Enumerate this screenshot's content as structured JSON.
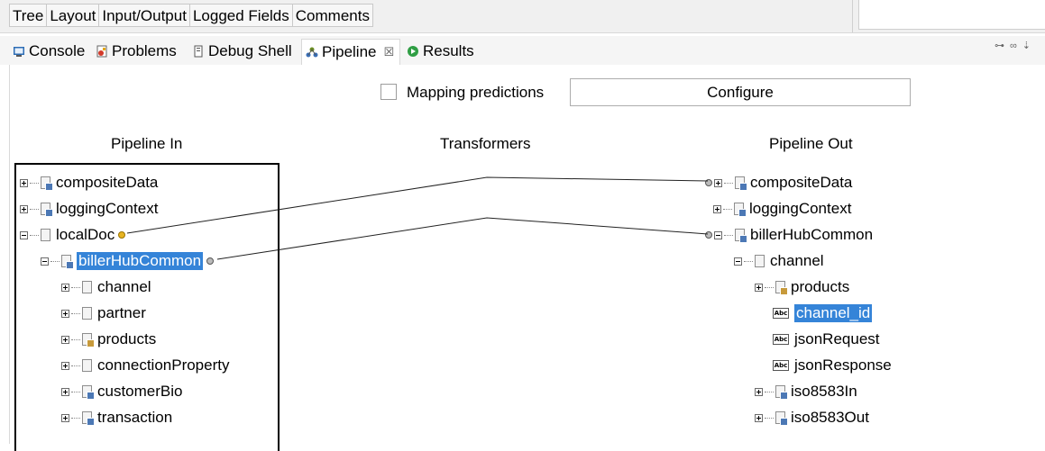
{
  "top_tabs": [
    "Tree",
    "Layout",
    "Input/Output",
    "Logged Fields",
    "Comments"
  ],
  "view_tabs": {
    "console": "Console",
    "problems": "Problems",
    "debug_shell": "Debug Shell",
    "pipeline": "Pipeline",
    "pipeline_close": "☒",
    "results": "Results"
  },
  "toolbar_icons": [
    "link-icon",
    "glasses-icon",
    "step-icon"
  ],
  "mapping": {
    "label": "Mapping predictions",
    "checked": false,
    "configure_label": "Configure"
  },
  "headers": {
    "pipeline_in": "Pipeline In",
    "transformers": "Transformers",
    "pipeline_out": "Pipeline Out"
  },
  "pipeline_in": [
    {
      "label": "compositeData",
      "icon": "document-list"
    },
    {
      "label": "loggingContext",
      "icon": "document-list"
    },
    {
      "label": "localDoc",
      "icon": "document"
    },
    {
      "label": "billerHubCommon",
      "icon": "document-list",
      "selected": true
    },
    {
      "label": "channel",
      "icon": "document"
    },
    {
      "label": "partner",
      "icon": "document"
    },
    {
      "label": "products",
      "icon": "document-ref"
    },
    {
      "label": "connectionProperty",
      "icon": "document"
    },
    {
      "label": "customerBio",
      "icon": "document-list"
    },
    {
      "label": "transaction",
      "icon": "document-list"
    }
  ],
  "pipeline_out": [
    {
      "label": "compositeData",
      "icon": "document-list"
    },
    {
      "label": "loggingContext",
      "icon": "document-list"
    },
    {
      "label": "billerHubCommon",
      "icon": "document-list"
    },
    {
      "label": "channel",
      "icon": "document"
    },
    {
      "label": "products",
      "icon": "document-ref"
    },
    {
      "label": "channel_id",
      "icon": "string-abc",
      "selected": true
    },
    {
      "label": "jsonRequest",
      "icon": "string-abc"
    },
    {
      "label": "jsonResponse",
      "icon": "string-abc"
    },
    {
      "label": "iso8583In",
      "icon": "document-list"
    },
    {
      "label": "iso8583Out",
      "icon": "document-list"
    }
  ]
}
